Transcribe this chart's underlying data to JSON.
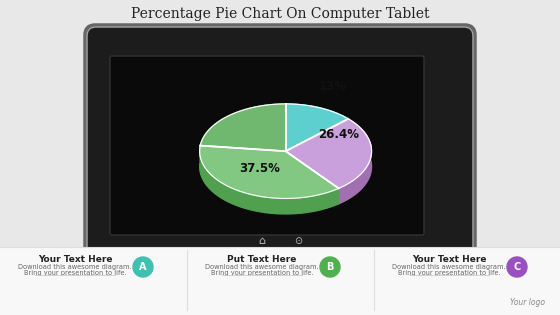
{
  "title": "Percentage Pie Chart On Computer Tablet",
  "title_fontsize": 10,
  "bg_color": "#e8e8e8",
  "pie_values": [
    13.0,
    26.4,
    37.5,
    23.1
  ],
  "pie_labels": [
    "13%",
    "26.4%",
    "37.5%",
    ""
  ],
  "pie_colors": [
    "#5ecfcf",
    "#c9a0dc",
    "#82c882",
    "#70b870"
  ],
  "pie_dark_colors": [
    "#3aadad",
    "#a070b0",
    "#50a050",
    "#408840"
  ],
  "section_titles": [
    "Your Text Here",
    "Put Text Here",
    "Your Text Here"
  ],
  "section_body1": "Download this awesome diagram.",
  "section_body2": "Bring your presentation to life.",
  "badge_letters": [
    "A",
    "B",
    "C"
  ],
  "badge_colors": [
    "#40c0b0",
    "#50b050",
    "#9b50c0"
  ],
  "footer_text": "Your logo",
  "tablet_outer": "#1a1a1a",
  "tablet_border": "#888888",
  "tablet_screen": "#0d0d0d"
}
